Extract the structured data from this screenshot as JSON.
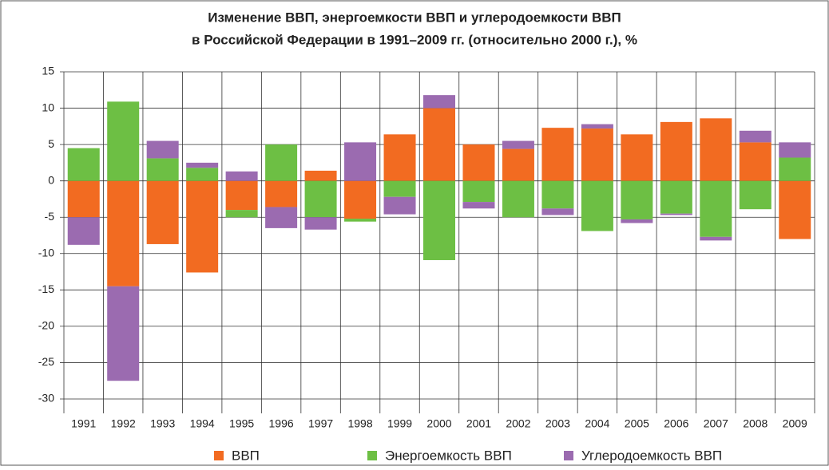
{
  "chart_data": {
    "type": "stacked_bar",
    "title": [
      "Изменение ВВП, энергоемкости ВВП и углеродоемкости ВВП",
      "в Российской Федерации в 1991–2009 гг. (относительно 2000 г.), %"
    ],
    "categories": [
      "1991",
      "1992",
      "1993",
      "1994",
      "1995",
      "1996",
      "1997",
      "1998",
      "1999",
      "2000",
      "2001",
      "2002",
      "2003",
      "2004",
      "2005",
      "2006",
      "2007",
      "2008",
      "2009"
    ],
    "series": [
      {
        "name": "ВВП",
        "color": "#f26b21",
        "values": [
          -5,
          -14.5,
          -8.7,
          -12.6,
          -4,
          -3.6,
          1.4,
          -5.2,
          6.4,
          10,
          5,
          4.4,
          7.3,
          7.2,
          6.4,
          8.1,
          8.6,
          5.3,
          -8
        ]
      },
      {
        "name": "Энергоемкость ВВП",
        "color": "#6dbf44",
        "values": [
          4.5,
          10.9,
          3.1,
          1.8,
          -1,
          5,
          -5,
          -0.4,
          -2.2,
          -10.9,
          -2.9,
          -5,
          -3.8,
          -6.9,
          -5.3,
          -4.5,
          -7.7,
          -3.9,
          3.2
        ]
      },
      {
        "name": "Углеродоемкость ВВП",
        "color": "#9b6bb0",
        "values": [
          -3.8,
          -13,
          2.4,
          0.7,
          1.3,
          -2.9,
          -1.7,
          5.3,
          -2.4,
          1.8,
          -0.9,
          1.1,
          -0.9,
          0.6,
          -0.5,
          -0.2,
          -0.5,
          1.6,
          2.1
        ]
      }
    ],
    "ylim": [
      -30,
      15
    ],
    "yticks": [
      -30,
      -25,
      -20,
      -15,
      -10,
      -5,
      0,
      5,
      10,
      15
    ],
    "grid": true,
    "legend": "bottom"
  }
}
